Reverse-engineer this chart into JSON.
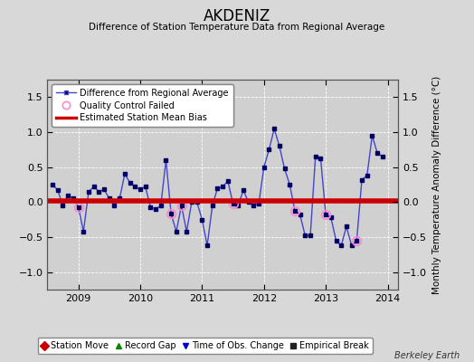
{
  "title": "AKDENIZ",
  "subtitle": "Difference of Station Temperature Data from Regional Average",
  "ylabel_right": "Monthly Temperature Anomaly Difference (°C)",
  "bias_value": 0.02,
  "xlim": [
    2008.5,
    2014.17
  ],
  "ylim": [
    -1.25,
    1.75
  ],
  "yticks": [
    -1,
    -0.5,
    0,
    0.5,
    1,
    1.5
  ],
  "xticks": [
    2009,
    2010,
    2011,
    2012,
    2013,
    2014
  ],
  "background_color": "#d8d8d8",
  "plot_bg_color": "#d0d0d0",
  "line_color": "#4444cc",
  "marker_color": "#000066",
  "bias_color": "#cc0000",
  "qc_color": "#ff88cc",
  "berkeley_earth_text": "Berkeley Earth",
  "months": [
    2008.583,
    2008.667,
    2008.75,
    2008.833,
    2008.917,
    2009.0,
    2009.083,
    2009.167,
    2009.25,
    2009.333,
    2009.417,
    2009.5,
    2009.583,
    2009.667,
    2009.75,
    2009.833,
    2009.917,
    2010.0,
    2010.083,
    2010.167,
    2010.25,
    2010.333,
    2010.417,
    2010.5,
    2010.583,
    2010.667,
    2010.75,
    2010.833,
    2010.917,
    2011.0,
    2011.083,
    2011.167,
    2011.25,
    2011.333,
    2011.417,
    2011.5,
    2011.583,
    2011.667,
    2011.75,
    2011.833,
    2011.917,
    2012.0,
    2012.083,
    2012.167,
    2012.25,
    2012.333,
    2012.417,
    2012.5,
    2012.583,
    2012.667,
    2012.75,
    2012.833,
    2012.917,
    2013.0,
    2013.083,
    2013.167,
    2013.25,
    2013.333,
    2013.417,
    2013.5,
    2013.583,
    2013.667,
    2013.75,
    2013.833,
    2013.917
  ],
  "values": [
    0.25,
    0.17,
    -0.05,
    0.1,
    0.05,
    -0.07,
    -0.42,
    0.15,
    0.22,
    0.15,
    0.18,
    0.05,
    -0.05,
    0.05,
    0.4,
    0.28,
    0.22,
    0.18,
    0.22,
    -0.07,
    -0.1,
    -0.05,
    0.6,
    -0.17,
    -0.42,
    -0.05,
    -0.42,
    0.0,
    0.0,
    -0.25,
    -0.62,
    -0.05,
    0.2,
    0.22,
    0.3,
    -0.02,
    -0.05,
    0.17,
    0.0,
    -0.05,
    -0.02,
    0.5,
    0.75,
    1.05,
    0.8,
    0.48,
    0.25,
    -0.12,
    -0.18,
    -0.48,
    -0.48,
    0.65,
    0.62,
    -0.18,
    -0.22,
    -0.55,
    -0.62,
    -0.35,
    -0.62,
    -0.55,
    0.32,
    0.38,
    0.95,
    0.7,
    0.65
  ],
  "qc_failed_indices": [
    5,
    23,
    25,
    35,
    47,
    53,
    59
  ],
  "legend1_items": [
    {
      "label": "Difference from Regional Average",
      "line_color": "#4444cc",
      "marker_color": "#000066"
    },
    {
      "label": "Quality Control Failed",
      "color": "#ff88cc"
    },
    {
      "label": "Estimated Station Mean Bias",
      "color": "#cc0000"
    }
  ],
  "legend2_items": [
    {
      "label": "Station Move",
      "color": "#cc0000",
      "marker": "D"
    },
    {
      "label": "Record Gap",
      "color": "#008800",
      "marker": "^"
    },
    {
      "label": "Time of Obs. Change",
      "color": "#0000cc",
      "marker": "v"
    },
    {
      "label": "Empirical Break",
      "color": "#222222",
      "marker": "s"
    }
  ]
}
